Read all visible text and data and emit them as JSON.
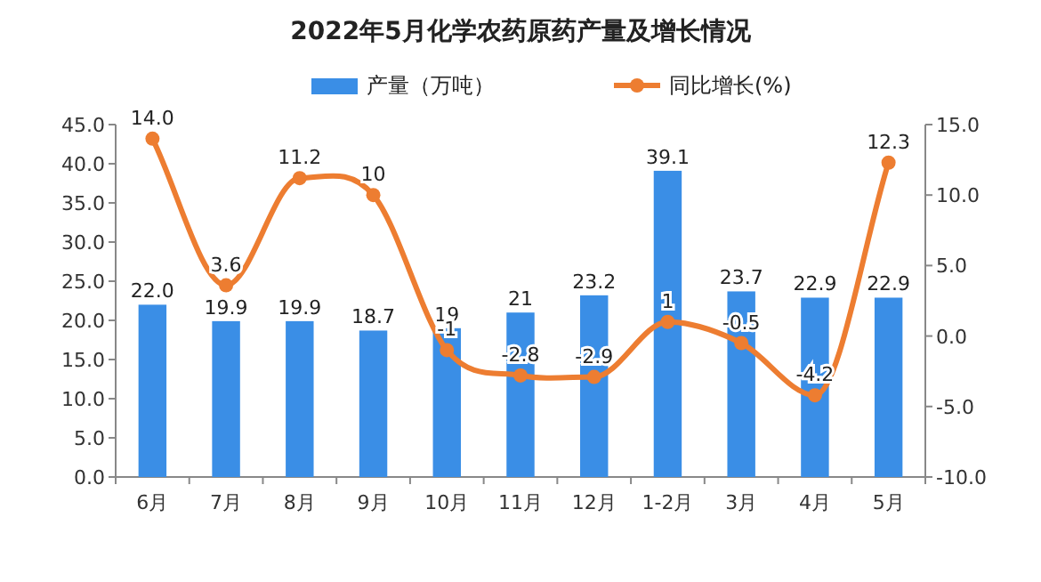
{
  "chart_data": {
    "type": "bar",
    "title": "2022年5月化学农药原药产量及增长情况",
    "categories": [
      "6月",
      "7月",
      "8月",
      "9月",
      "10月",
      "11月",
      "12月",
      "1-2月",
      "3月",
      "4月",
      "5月"
    ],
    "series": [
      {
        "name": "产量（万吨）",
        "color": "#3a8ee6",
        "values": [
          22.0,
          19.9,
          19.9,
          18.7,
          19,
          21,
          23.2,
          39.1,
          23.7,
          22.9,
          22.9
        ],
        "value_labels": [
          "22.0",
          "19.9",
          "19.9",
          "18.7",
          "19",
          "21",
          "23.2",
          "39.1",
          "23.7",
          "22.9",
          "22.9"
        ]
      },
      {
        "name": "同比增长(%)",
        "type": "line",
        "axis": "y2",
        "color": "#ed7d31",
        "marker": "circle",
        "values": [
          14.0,
          3.6,
          11.2,
          10,
          -1,
          -2.8,
          -2.9,
          1,
          -0.5,
          -4.2,
          12.3
        ],
        "value_labels": [
          "14.0",
          "3.6",
          "11.2",
          "10",
          "-1",
          "-2.8",
          "-2.9",
          "1",
          "-0.5",
          "-4.2",
          "12.3"
        ]
      }
    ],
    "ylim": [
      0,
      45
    ],
    "yticks": [
      {
        "value": 0,
        "label": "0.0"
      },
      {
        "value": 5,
        "label": "5.0"
      },
      {
        "value": 10,
        "label": "10.0"
      },
      {
        "value": 15,
        "label": "15.0"
      },
      {
        "value": 20,
        "label": "20.0"
      },
      {
        "value": 25,
        "label": "25.0"
      },
      {
        "value": 30,
        "label": "30.0"
      },
      {
        "value": 35,
        "label": "35.0"
      },
      {
        "value": 40,
        "label": "40.0"
      },
      {
        "value": 45,
        "label": "45.0"
      }
    ],
    "y2lim": [
      -10,
      15
    ],
    "y2ticks": [
      {
        "value": -10,
        "label": "-10.0"
      },
      {
        "value": -5,
        "label": "-5.0"
      },
      {
        "value": 0,
        "label": "0.0"
      },
      {
        "value": 5,
        "label": "5.0"
      },
      {
        "value": 10,
        "label": "10.0"
      },
      {
        "value": 15,
        "label": "15.0"
      }
    ],
    "legend": "top",
    "grid": false
  }
}
